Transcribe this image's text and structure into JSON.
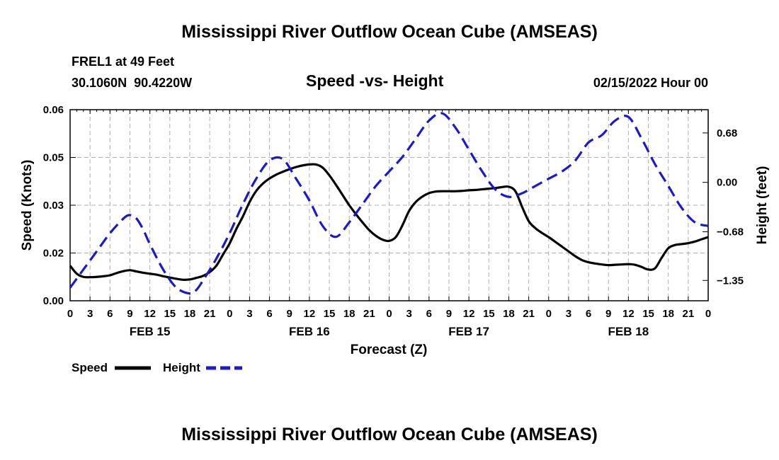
{
  "main_title": "Mississippi River Outflow Ocean Cube (AMSEAS)",
  "station": "FREL1 at 49 Feet",
  "coords": "30.1060N  90.4220W",
  "subtitle": "Speed -vs- Height",
  "date": "02/15/2022 Hour 00",
  "footer_title": "Mississippi River Outflow Ocean Cube (AMSEAS)",
  "chart_data": {
    "type": "line",
    "title": "Speed -vs- Height",
    "xlabel": "Forecast (Z)",
    "ylabel": "Speed (Knots)",
    "y2label": "Height (feet)",
    "x_range_hours": [
      0,
      96
    ],
    "ylim": [
      0,
      0.06
    ],
    "y2lim": [
      -1.63,
      1.0
    ],
    "y_ticks": [
      "0.00",
      "0.02",
      "0.03",
      "0.05",
      "0.06"
    ],
    "y_tick_values": [
      0.0,
      0.015,
      0.03,
      0.045,
      0.06
    ],
    "y2_ticks": [
      "0.68",
      "0.00",
      "−0.68",
      "−1.35"
    ],
    "y2_tick_values": [
      0.68,
      0.0,
      -0.68,
      -1.35
    ],
    "x_tick_labels": [
      "0",
      "3",
      "6",
      "9",
      "12",
      "15",
      "18",
      "21",
      "0",
      "3",
      "6",
      "9",
      "12",
      "15",
      "18",
      "21",
      "0",
      "3",
      "6",
      "9",
      "12",
      "15",
      "18",
      "21",
      "0",
      "3",
      "6",
      "9",
      "12",
      "15",
      "18",
      "21",
      "0"
    ],
    "day_labels": [
      {
        "label": "FEB 15",
        "hour": 12
      },
      {
        "label": "FEB 16",
        "hour": 36
      },
      {
        "label": "FEB 17",
        "hour": 60
      },
      {
        "label": "FEB 18",
        "hour": 84
      }
    ],
    "grid": true,
    "series": [
      {
        "name": "Speed",
        "axis": "left",
        "color": "#000000",
        "style": "solid",
        "x": [
          0,
          1,
          2,
          3,
          4,
          5,
          6,
          7,
          8,
          9,
          10,
          11,
          12,
          13,
          14,
          15,
          16,
          17,
          18,
          19,
          20,
          21,
          22,
          23,
          24,
          25,
          26,
          27,
          28,
          29,
          30,
          31,
          32,
          33,
          34,
          35,
          36,
          37,
          38,
          39,
          40,
          41,
          42,
          43,
          44,
          45,
          46,
          47,
          48,
          49,
          50,
          51,
          52,
          53,
          54,
          55,
          56,
          57,
          58,
          59,
          60,
          61,
          62,
          63,
          64,
          65,
          66,
          67,
          68,
          69,
          70,
          71,
          72,
          73,
          74,
          75,
          76,
          77,
          78,
          79,
          80,
          81,
          82,
          83,
          84,
          85,
          86,
          87,
          88,
          89,
          90,
          91,
          92,
          93,
          94,
          95,
          96
        ],
        "values": [
          0.011,
          0.0085,
          0.0075,
          0.0074,
          0.0075,
          0.0077,
          0.008,
          0.0087,
          0.0093,
          0.0096,
          0.0092,
          0.0088,
          0.0085,
          0.0082,
          0.0077,
          0.0073,
          0.0069,
          0.0066,
          0.0067,
          0.0072,
          0.0078,
          0.009,
          0.011,
          0.0145,
          0.018,
          0.0225,
          0.0265,
          0.031,
          0.0345,
          0.0368,
          0.0384,
          0.0396,
          0.0405,
          0.0413,
          0.042,
          0.0425,
          0.0428,
          0.0428,
          0.0418,
          0.0394,
          0.0364,
          0.0332,
          0.03,
          0.0272,
          0.0246,
          0.0222,
          0.0204,
          0.0192,
          0.0188,
          0.02,
          0.0237,
          0.0282,
          0.031,
          0.0327,
          0.0338,
          0.0343,
          0.0344,
          0.0344,
          0.0344,
          0.0345,
          0.0347,
          0.0348,
          0.035,
          0.0352,
          0.0354,
          0.0357,
          0.0358,
          0.0344,
          0.0295,
          0.025,
          0.0228,
          0.0213,
          0.02,
          0.0185,
          0.017,
          0.0155,
          0.014,
          0.0128,
          0.0121,
          0.0117,
          0.0114,
          0.0112,
          0.0113,
          0.0114,
          0.0115,
          0.0113,
          0.0106,
          0.0098,
          0.0102,
          0.0135,
          0.0165,
          0.0175,
          0.0178,
          0.0181,
          0.0186,
          0.0193,
          0.02
        ]
      },
      {
        "name": "Height",
        "axis": "right",
        "color": "#1a1acc",
        "style": "dashed",
        "x": [
          0,
          2,
          4,
          6,
          8,
          9,
          10,
          11,
          12,
          14,
          16,
          18,
          19,
          20,
          22,
          24,
          26,
          28,
          30,
          32,
          34,
          36,
          38,
          40,
          42,
          44,
          46,
          48,
          50,
          52,
          54,
          56,
          58,
          60,
          62,
          64,
          66,
          68,
          70,
          72,
          74,
          76,
          78,
          80,
          82,
          84,
          86,
          88,
          90,
          92,
          94,
          96
        ],
        "values": [
          -1.45,
          -1.2,
          -0.95,
          -0.7,
          -0.5,
          -0.45,
          -0.5,
          -0.65,
          -0.85,
          -1.2,
          -1.45,
          -1.53,
          -1.48,
          -1.35,
          -1.05,
          -0.7,
          -0.3,
          0.05,
          0.3,
          0.32,
          0.05,
          -0.25,
          -0.6,
          -0.75,
          -0.55,
          -0.3,
          -0.05,
          0.15,
          0.35,
          0.6,
          0.85,
          0.95,
          0.75,
          0.45,
          0.15,
          -0.1,
          -0.2,
          -0.15,
          -0.05,
          0.05,
          0.15,
          0.3,
          0.55,
          0.65,
          0.85,
          0.9,
          0.6,
          0.25,
          -0.05,
          -0.35,
          -0.55,
          -0.6
        ]
      }
    ]
  },
  "legend": {
    "speed_label": "Speed",
    "height_label": "Height"
  }
}
